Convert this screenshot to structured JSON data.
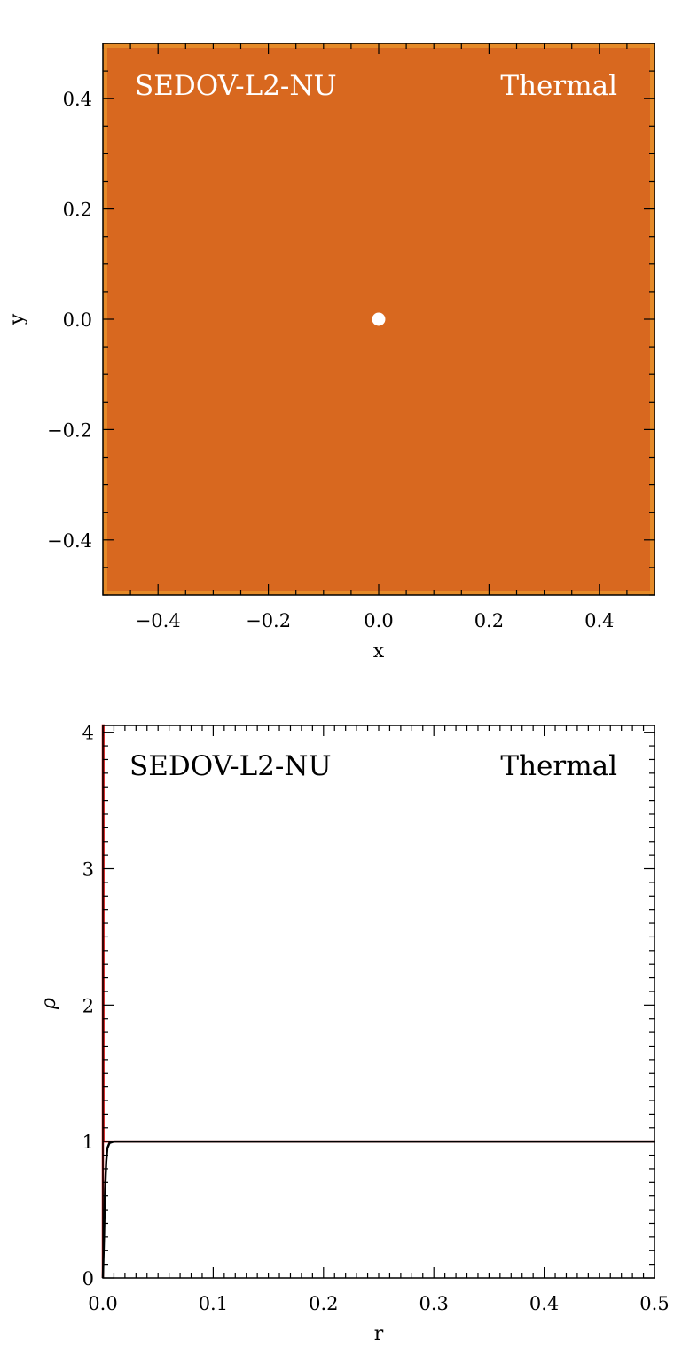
{
  "chart_data": [
    {
      "type": "heatmap",
      "xlabel": "x",
      "ylabel": "y",
      "xlim": [
        -0.5,
        0.5
      ],
      "ylim": [
        -0.5,
        0.5
      ],
      "xticks": [
        -0.4,
        -0.2,
        0.0,
        0.2,
        0.4
      ],
      "yticks": [
        -0.4,
        -0.2,
        0.0,
        0.2,
        0.4
      ],
      "xtick_labels": [
        "−0.4",
        "−0.2",
        "0.0",
        "0.2",
        "0.4"
      ],
      "ytick_labels": [
        "−0.4",
        "−0.2",
        "0.0",
        "0.2",
        "0.4"
      ],
      "label_left": "SEDOV-L2-NU",
      "label_right": "Thermal",
      "colors": {
        "field": "#d8681f",
        "edge": "#e8902a",
        "core": "#ffffff",
        "text": "#ffffff"
      },
      "blob": {
        "x": 0.0,
        "y": 0.0,
        "r": 0.012
      }
    },
    {
      "type": "line",
      "xlabel": "r",
      "ylabel": "ρ",
      "xlim": [
        0.0,
        0.5
      ],
      "ylim": [
        0,
        4.05
      ],
      "xticks": [
        0.0,
        0.1,
        0.2,
        0.3,
        0.4,
        0.5
      ],
      "yticks": [
        0,
        1,
        2,
        3,
        4
      ],
      "xtick_labels": [
        "0.0",
        "0.1",
        "0.2",
        "0.3",
        "0.4",
        "0.5"
      ],
      "ytick_labels": [
        "0",
        "1",
        "2",
        "3",
        "4"
      ],
      "label_left": "SEDOV-L2-NU",
      "label_right": "Thermal",
      "series": [
        {
          "color": "#000000",
          "x": [
            0.0,
            0.001,
            0.002,
            0.003,
            0.004,
            0.006,
            0.01,
            0.05,
            0.1,
            0.2,
            0.3,
            0.4,
            0.5
          ],
          "y": [
            0.0,
            0.3,
            0.65,
            0.85,
            0.95,
            0.99,
            1.0,
            1.0,
            1.0,
            1.0,
            1.0,
            1.0,
            1.0
          ]
        },
        {
          "color": "#d01010",
          "x": [
            0.0,
            0.0,
            0.0005,
            0.0005,
            0.5
          ],
          "y": [
            0.0,
            4.05,
            4.05,
            1.0,
            1.0
          ]
        }
      ]
    }
  ]
}
